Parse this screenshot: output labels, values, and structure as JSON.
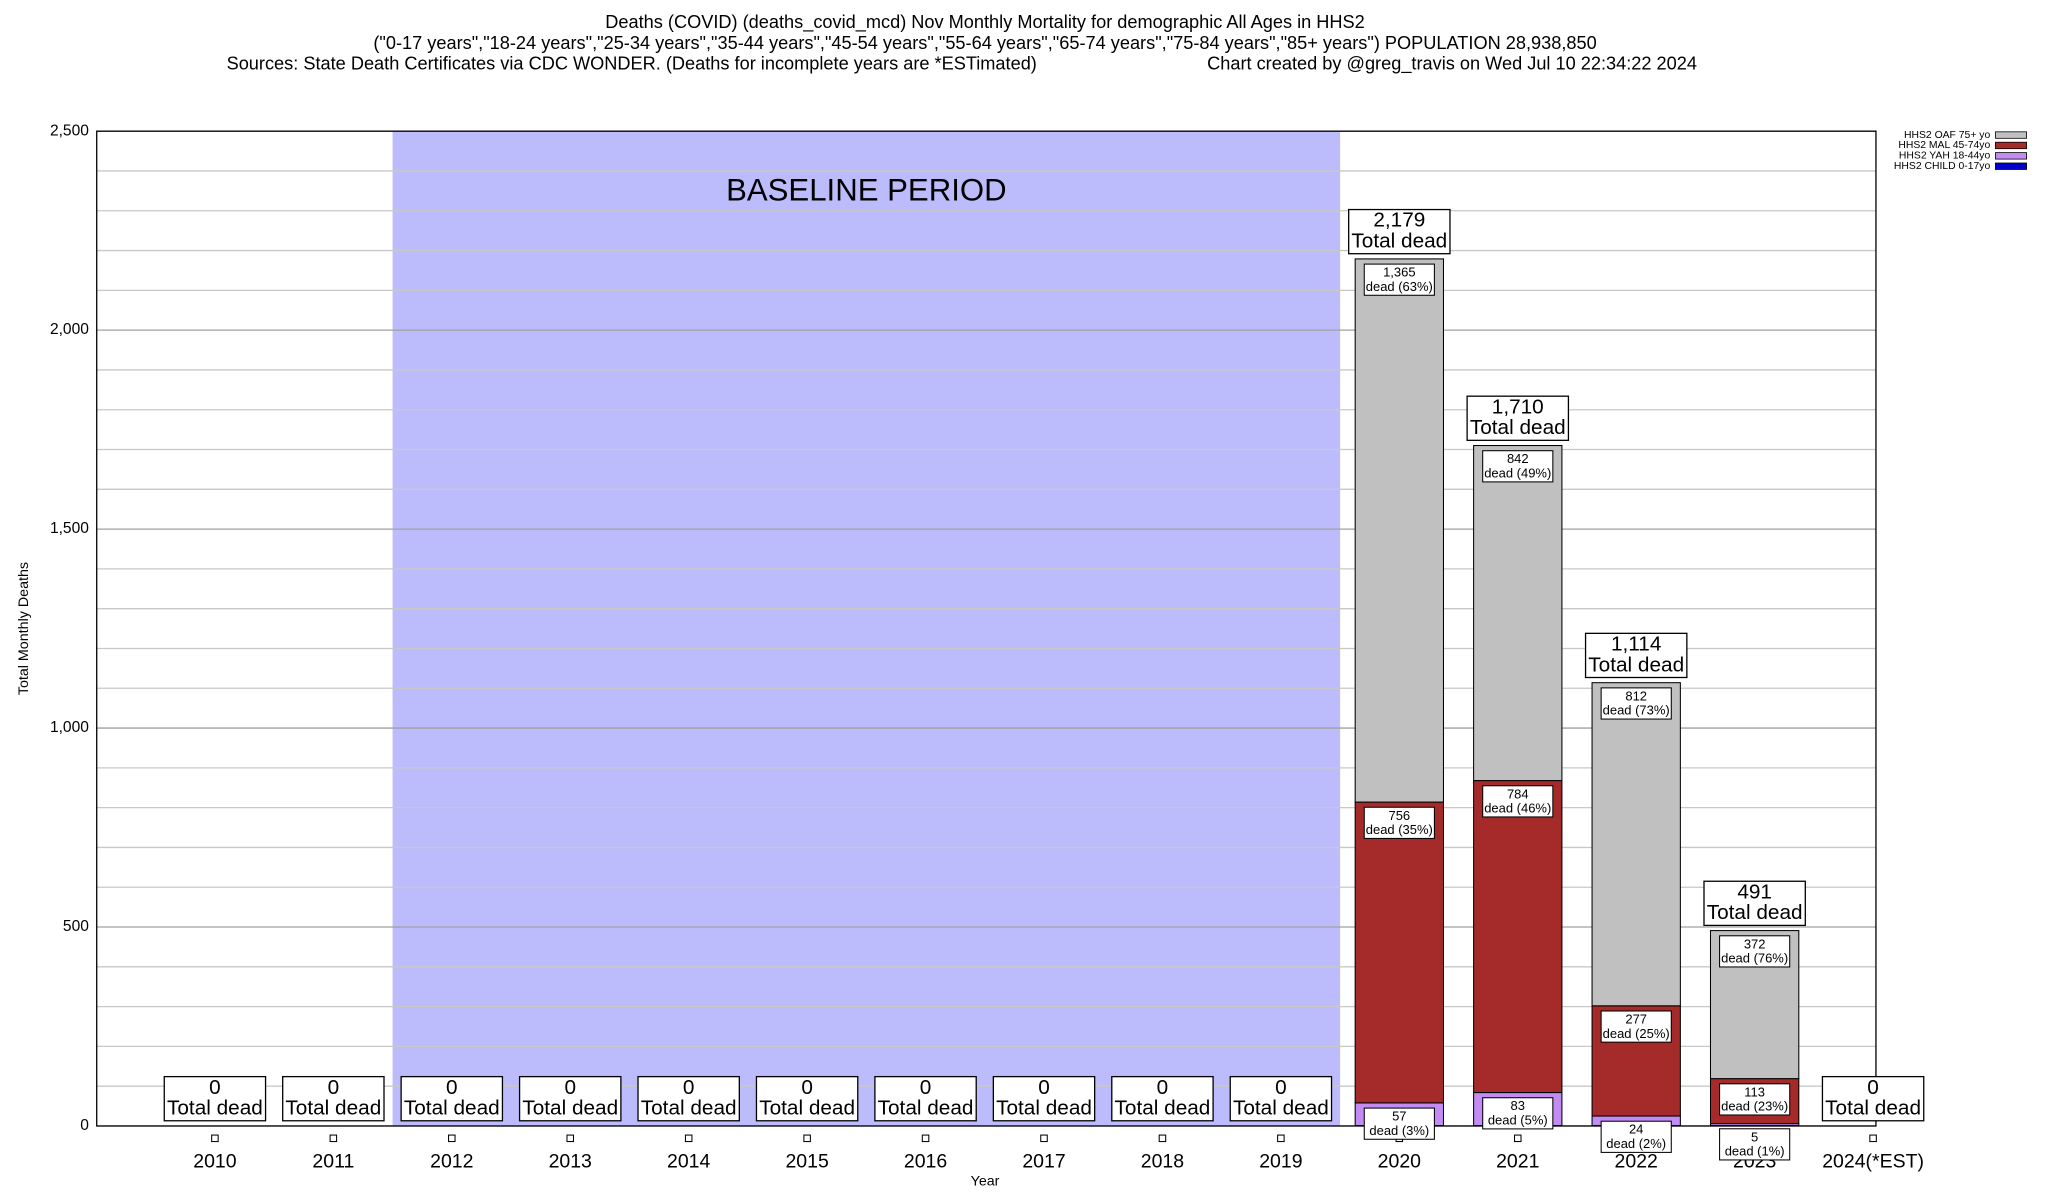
{
  "chart_data": {
    "type": "stacked-bar",
    "title": "Deaths (COVID) (deaths_covid_mcd) Nov Monthly Mortality for demographic All Ages in HHS2",
    "subtitle": "(\"0-17 years\",\"18-24 years\",\"25-34 years\",\"35-44 years\",\"45-54 years\",\"55-64 years\",\"65-74 years\",\"75-84 years\",\"85+ years\") POPULATION 28,938,850",
    "source": "Sources: State Death Certificates via CDC WONDER. (Deaths for incomplete years are *ESTimated)",
    "credit": "Chart created by @greg_travis on Wed Jul 10 22:34:22 2024",
    "xlabel": "Year",
    "ylabel": "Total Monthly Deaths",
    "categories": [
      "2010",
      "2011",
      "2012",
      "2013",
      "2014",
      "2015",
      "2016",
      "2017",
      "2018",
      "2019",
      "2020",
      "2021",
      "2022",
      "2023",
      "2024(*EST)"
    ],
    "ylim": [
      0,
      2500
    ],
    "yticks": [
      0,
      {
        "value": 500,
        "label": "500"
      },
      {
        "value": 1000,
        "label": "1,000"
      },
      {
        "value": 1500,
        "label": "1,500"
      },
      {
        "value": 2000,
        "label": "2,000"
      },
      {
        "value": 2500,
        "label": "2,500"
      }
    ],
    "minor_yticks": [
      100,
      200,
      300,
      400,
      600,
      700,
      800,
      900,
      1100,
      1200,
      1300,
      1400,
      1600,
      1700,
      1800,
      1900,
      2100,
      2200,
      2300,
      2400
    ],
    "grid": true,
    "legend": "top-right",
    "baseline": {
      "label": "BASELINE PERIOD",
      "from": "2012",
      "to": "2019",
      "color": "#bcbcfc"
    },
    "series": [
      {
        "name": "HHS2 CHILD 0-17yo",
        "color": "#0000c8",
        "values": [
          0,
          0,
          0,
          0,
          0,
          0,
          0,
          0,
          0,
          0,
          1,
          1,
          1,
          1,
          0
        ]
      },
      {
        "name": "HHS2 YAH 18-44yo",
        "color": "#c38cf5",
        "values": [
          0,
          0,
          0,
          0,
          0,
          0,
          0,
          0,
          0,
          0,
          57,
          83,
          24,
          5,
          0
        ],
        "value_labels": [
          null,
          null,
          null,
          null,
          null,
          null,
          null,
          null,
          null,
          null,
          "57",
          "83",
          "24",
          "5",
          null
        ],
        "percent_labels": [
          null,
          null,
          null,
          null,
          null,
          null,
          null,
          null,
          null,
          null,
          "dead (3%)",
          "dead (5%)",
          "dead (2%)",
          "dead (1%)",
          null
        ]
      },
      {
        "name": "HHS2 MAL 45-74yo",
        "color": "#a52a2a",
        "values": [
          0,
          0,
          0,
          0,
          0,
          0,
          0,
          0,
          0,
          0,
          756,
          784,
          277,
          113,
          0
        ],
        "value_labels": [
          null,
          null,
          null,
          null,
          null,
          null,
          null,
          null,
          null,
          null,
          "756",
          "784",
          "277",
          "113",
          null
        ],
        "percent_labels": [
          null,
          null,
          null,
          null,
          null,
          null,
          null,
          null,
          null,
          null,
          "dead (35%)",
          "dead (46%)",
          "dead (25%)",
          "dead (23%)",
          null
        ]
      },
      {
        "name": "HHS2 OAF 75+ yo",
        "color": "#c0c0c0",
        "values": [
          0,
          0,
          0,
          0,
          0,
          0,
          0,
          0,
          0,
          0,
          1365,
          842,
          812,
          372,
          0
        ],
        "value_labels": [
          null,
          null,
          null,
          null,
          null,
          null,
          null,
          null,
          null,
          null,
          "1,365",
          "842",
          "812",
          "372",
          null
        ],
        "percent_labels": [
          null,
          null,
          null,
          null,
          null,
          null,
          null,
          null,
          null,
          null,
          "dead (63%)",
          "dead (49%)",
          "dead (73%)",
          "dead (76%)",
          null
        ]
      }
    ],
    "totals": [
      0,
      0,
      0,
      0,
      0,
      0,
      0,
      0,
      0,
      0,
      2179,
      1710,
      1114,
      491,
      0
    ],
    "total_labels": [
      "0",
      "0",
      "0",
      "0",
      "0",
      "0",
      "0",
      "0",
      "0",
      "0",
      "2,179",
      "1,710",
      "1,114",
      "491",
      "0"
    ],
    "total_caption": "Total dead"
  }
}
